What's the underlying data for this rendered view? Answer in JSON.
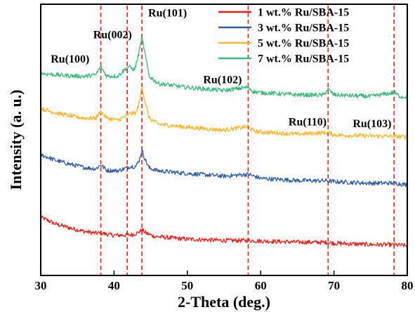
{
  "chart_data": {
    "type": "line",
    "xlabel": "2-Theta (deg.)",
    "ylabel": "Intensity (a. u.)",
    "xlim": [
      30,
      80
    ],
    "ylim": [
      0,
      100
    ],
    "xticks": [
      30,
      40,
      50,
      60,
      70,
      80
    ],
    "y_tick_labels": "none",
    "grid": false,
    "legend_placement": "top-right",
    "colors": {
      "ru1": "#e8201c",
      "ru3": "#2f5e9e",
      "ru5": "#f7b731",
      "ru7": "#3cb878",
      "reference_lines": "#e8201c"
    },
    "series": [
      {
        "name": "1 wt.% Ru/SBA-15",
        "color": "#e8201c",
        "points": [
          [
            30,
            21.5
          ],
          [
            32,
            19.0
          ],
          [
            34,
            17.5
          ],
          [
            36,
            16.2
          ],
          [
            37.5,
            15.6
          ],
          [
            38.2,
            15.6
          ],
          [
            40,
            14.8
          ],
          [
            41.8,
            14.9
          ],
          [
            42.5,
            15.0
          ],
          [
            43.3,
            15.8
          ],
          [
            43.8,
            16.8
          ],
          [
            44.4,
            15.6
          ],
          [
            45.5,
            14.4
          ],
          [
            48,
            13.8
          ],
          [
            50,
            13.4
          ],
          [
            55,
            12.9
          ],
          [
            58.3,
            12.9
          ],
          [
            60,
            12.7
          ],
          [
            65,
            12.3
          ],
          [
            69.2,
            12.2
          ],
          [
            70,
            11.9
          ],
          [
            75,
            11.4
          ],
          [
            78.2,
            11.3
          ],
          [
            80,
            11.0
          ]
        ]
      },
      {
        "name": "3 wt.% Ru/SBA-15",
        "color": "#2f5e9e",
        "points": [
          [
            30,
            44.5
          ],
          [
            32,
            42.5
          ],
          [
            34,
            41.0
          ],
          [
            36,
            39.8
          ],
          [
            37.5,
            39.3
          ],
          [
            38.2,
            40.8
          ],
          [
            39,
            38.8
          ],
          [
            40.5,
            38.6
          ],
          [
            41.5,
            39.4
          ],
          [
            42.2,
            40.2
          ],
          [
            43.0,
            40.2
          ],
          [
            43.5,
            43.0
          ],
          [
            43.8,
            46.2
          ],
          [
            44.2,
            43.0
          ],
          [
            44.8,
            39.6
          ],
          [
            46,
            38.6
          ],
          [
            50,
            37.6
          ],
          [
            55,
            36.6
          ],
          [
            58.3,
            37.3
          ],
          [
            60,
            35.8
          ],
          [
            65,
            35.0
          ],
          [
            69.2,
            34.9
          ],
          [
            70,
            34.6
          ],
          [
            75,
            34.0
          ],
          [
            78.2,
            34.1
          ],
          [
            80,
            33.4
          ]
        ]
      },
      {
        "name": "5 wt.% Ru/SBA-15",
        "color": "#f7b731",
        "points": [
          [
            30,
            61.5
          ],
          [
            32,
            60.0
          ],
          [
            34,
            58.8
          ],
          [
            36,
            58.0
          ],
          [
            37.5,
            58.0
          ],
          [
            38.2,
            60.5
          ],
          [
            39,
            58.0
          ],
          [
            40.5,
            57.2
          ],
          [
            41.5,
            58.5
          ],
          [
            42.2,
            59.7
          ],
          [
            43.0,
            59.8
          ],
          [
            43.5,
            64.5
          ],
          [
            43.8,
            69.8
          ],
          [
            44.2,
            64.5
          ],
          [
            44.8,
            58.0
          ],
          [
            46,
            55.8
          ],
          [
            50,
            54.6
          ],
          [
            55,
            53.6
          ],
          [
            58.3,
            54.9
          ],
          [
            59,
            53.3
          ],
          [
            60,
            52.9
          ],
          [
            65,
            52.1
          ],
          [
            69.2,
            52.7
          ],
          [
            70,
            51.8
          ],
          [
            75,
            51.4
          ],
          [
            78.2,
            51.3
          ],
          [
            80,
            51.0
          ]
        ]
      },
      {
        "name": "7 wt.% Ru/SBA-15",
        "color": "#3cb878",
        "points": [
          [
            30,
            74.5
          ],
          [
            32,
            74.0
          ],
          [
            34,
            73.6
          ],
          [
            36,
            73.4
          ],
          [
            37.5,
            74.0
          ],
          [
            38.2,
            77.0
          ],
          [
            39,
            73.5
          ],
          [
            40.5,
            73.5
          ],
          [
            41.5,
            76.0
          ],
          [
            42.0,
            77.0
          ],
          [
            42.8,
            75.8
          ],
          [
            43.4,
            82.0
          ],
          [
            43.8,
            88.0
          ],
          [
            44.2,
            82.0
          ],
          [
            44.8,
            73.5
          ],
          [
            46,
            70.8
          ],
          [
            50,
            69.3
          ],
          [
            55,
            68.2
          ],
          [
            58.3,
            69.4
          ],
          [
            59,
            67.8
          ],
          [
            60,
            67.4
          ],
          [
            65,
            66.6
          ],
          [
            68.5,
            66.5
          ],
          [
            69.2,
            68.6
          ],
          [
            70,
            66.6
          ],
          [
            75,
            66.0
          ],
          [
            78.2,
            67.4
          ],
          [
            79,
            66.0
          ],
          [
            80,
            65.8
          ]
        ]
      }
    ],
    "reference_lines": [
      {
        "x": 38.2,
        "label": "Ru(100)",
        "label_x": 34.0,
        "label_y": 78.5
      },
      {
        "x": 41.8,
        "label": "Ru(002)",
        "label_x": 39.8,
        "label_y": 87.5
      },
      {
        "x": 43.8,
        "label": "Ru(101)",
        "label_x": 47.3,
        "label_y": 95.5
      },
      {
        "x": 58.3,
        "label": "Ru(102)",
        "label_x": 54.8,
        "label_y": 70.8
      },
      {
        "x": 69.2,
        "label": "Ru(110)",
        "label_x": 66.4,
        "label_y": 55.3
      },
      {
        "x": 78.2,
        "label": "Ru(103)",
        "label_x": 75.2,
        "label_y": 54.6
      }
    ]
  }
}
